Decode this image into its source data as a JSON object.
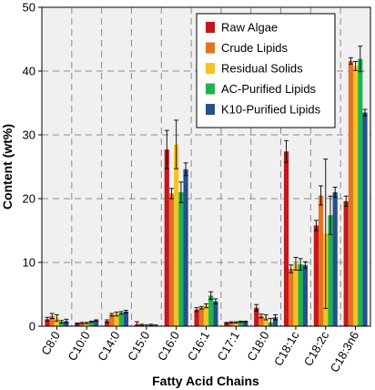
{
  "chart_data": {
    "type": "bar",
    "title": "",
    "xlabel": "Fatty Acid Chains",
    "ylabel": "Content (wt%)",
    "ylim": [
      0,
      50
    ],
    "yticks": [
      0,
      10,
      20,
      30,
      40,
      50
    ],
    "grid": "dashed, vertical between categories and horizontal at y ticks",
    "legend_position": "top-right",
    "categories": [
      "C8:0",
      "C10:0",
      "C14:0",
      "C15:0",
      "C16:0",
      "C16:1",
      "C17:1",
      "C18:0",
      "C18:1c",
      "C18:2c",
      "C18:3n6"
    ],
    "series": [
      {
        "name": "Raw Algae",
        "color": "#c4161c",
        "values": [
          1.1,
          0.4,
          0.8,
          0.3,
          27.7,
          2.6,
          0.5,
          2.9,
          27.4,
          15.8,
          19.6
        ],
        "errors": [
          0.3,
          0.1,
          0.2,
          0.4,
          3.0,
          0.3,
          0.1,
          0.5,
          1.7,
          0.8,
          0.8
        ]
      },
      {
        "name": "Crude Lipids",
        "color": "#e37222",
        "values": [
          1.6,
          0.5,
          1.8,
          0.2,
          20.8,
          2.9,
          0.6,
          1.6,
          9.0,
          20.5,
          41.6
        ],
        "errors": [
          0.4,
          0.1,
          0.2,
          0.1,
          0.8,
          0.2,
          0.1,
          0.3,
          0.6,
          1.5,
          0.5
        ]
      },
      {
        "name": "Residual Solids",
        "color": "#f6c21e",
        "values": [
          1.3,
          0.5,
          1.9,
          0.1,
          28.5,
          3.2,
          0.6,
          1.4,
          9.8,
          14.5,
          40.8
        ],
        "errors": [
          0.5,
          0.1,
          0.3,
          0.1,
          3.8,
          0.3,
          0.1,
          0.4,
          1.0,
          11.7,
          0.7
        ]
      },
      {
        "name": "AC-Purified Lipids",
        "color": "#1fb34e",
        "values": [
          0.7,
          0.7,
          2.1,
          0.2,
          21.0,
          4.8,
          0.7,
          0.6,
          9.7,
          17.4,
          41.9
        ],
        "errors": [
          0.2,
          0.1,
          0.2,
          0.1,
          1.6,
          0.6,
          0.1,
          0.6,
          0.9,
          3.0,
          2.0
        ]
      },
      {
        "name": "K10-Purified Lipids",
        "color": "#26508a",
        "values": [
          0.8,
          0.9,
          2.3,
          0.1,
          24.6,
          3.9,
          0.7,
          1.4,
          9.6,
          21.0,
          33.5
        ],
        "errors": [
          0.3,
          0.1,
          0.2,
          0.1,
          1.0,
          0.4,
          0.1,
          0.4,
          0.5,
          0.8,
          0.5
        ]
      }
    ]
  }
}
